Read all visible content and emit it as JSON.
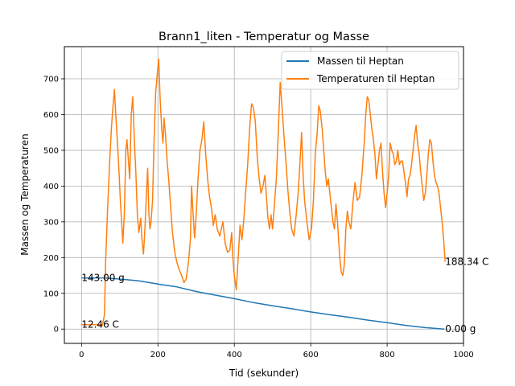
{
  "chart_data": {
    "type": "line",
    "title": "Brann1_liten - Temperatur og Masse",
    "xlabel": "Tid (sekunder)",
    "ylabel": "Massen og Temperaturen",
    "xlim": [
      -45,
      1000
    ],
    "ylim": [
      -40,
      790
    ],
    "xticks": [
      0,
      200,
      400,
      600,
      800,
      1000
    ],
    "yticks": [
      0,
      100,
      200,
      300,
      400,
      500,
      600,
      700
    ],
    "grid": true,
    "legend_position": "top-right",
    "series": [
      {
        "name": "Massen til Heptan",
        "color": "#1f77b4",
        "points": [
          [
            0,
            143
          ],
          [
            60,
            143
          ],
          [
            100,
            140
          ],
          [
            150,
            135
          ],
          [
            200,
            126
          ],
          [
            250,
            118
          ],
          [
            300,
            105
          ],
          [
            350,
            95
          ],
          [
            400,
            85
          ],
          [
            450,
            74
          ],
          [
            500,
            65
          ],
          [
            550,
            57
          ],
          [
            600,
            48
          ],
          [
            650,
            40
          ],
          [
            700,
            33
          ],
          [
            750,
            25
          ],
          [
            800,
            18
          ],
          [
            850,
            10
          ],
          [
            900,
            4
          ],
          [
            950,
            0
          ]
        ]
      },
      {
        "name": "Temperaturen til Heptan",
        "color": "#ff7f0e",
        "points": [
          [
            0,
            12.5
          ],
          [
            55,
            12.5
          ],
          [
            60,
            40
          ],
          [
            63,
            190
          ],
          [
            68,
            330
          ],
          [
            73,
            455
          ],
          [
            78,
            560
          ],
          [
            82,
            620
          ],
          [
            86,
            670
          ],
          [
            90,
            590
          ],
          [
            94,
            520
          ],
          [
            98,
            440
          ],
          [
            102,
            350
          ],
          [
            106,
            280
          ],
          [
            108,
            240
          ],
          [
            112,
            320
          ],
          [
            116,
            500
          ],
          [
            119,
            530
          ],
          [
            122,
            480
          ],
          [
            126,
            420
          ],
          [
            130,
            600
          ],
          [
            134,
            650
          ],
          [
            138,
            530
          ],
          [
            142,
            440
          ],
          [
            146,
            320
          ],
          [
            150,
            270
          ],
          [
            155,
            310
          ],
          [
            158,
            250
          ],
          [
            162,
            210
          ],
          [
            166,
            280
          ],
          [
            170,
            380
          ],
          [
            173,
            450
          ],
          [
            176,
            330
          ],
          [
            179,
            280
          ],
          [
            182,
            300
          ],
          [
            186,
            360
          ],
          [
            190,
            530
          ],
          [
            194,
            660
          ],
          [
            198,
            710
          ],
          [
            202,
            755
          ],
          [
            206,
            640
          ],
          [
            210,
            560
          ],
          [
            213,
            520
          ],
          [
            216,
            590
          ],
          [
            220,
            540
          ],
          [
            224,
            470
          ],
          [
            228,
            420
          ],
          [
            232,
            360
          ],
          [
            238,
            270
          ],
          [
            244,
            215
          ],
          [
            250,
            185
          ],
          [
            256,
            165
          ],
          [
            262,
            150
          ],
          [
            268,
            130
          ],
          [
            274,
            140
          ],
          [
            280,
            190
          ],
          [
            285,
            250
          ],
          [
            288,
            400
          ],
          [
            292,
            320
          ],
          [
            296,
            255
          ],
          [
            300,
            320
          ],
          [
            305,
            420
          ],
          [
            310,
            500
          ],
          [
            315,
            530
          ],
          [
            320,
            580
          ],
          [
            325,
            490
          ],
          [
            330,
            420
          ],
          [
            335,
            370
          ],
          [
            340,
            340
          ],
          [
            345,
            290
          ],
          [
            350,
            320
          ],
          [
            355,
            280
          ],
          [
            362,
            260
          ],
          [
            370,
            300
          ],
          [
            376,
            240
          ],
          [
            382,
            215
          ],
          [
            388,
            220
          ],
          [
            393,
            270
          ],
          [
            396,
            200
          ],
          [
            400,
            150
          ],
          [
            405,
            110
          ],
          [
            410,
            200
          ],
          [
            415,
            290
          ],
          [
            420,
            250
          ],
          [
            425,
            310
          ],
          [
            430,
            390
          ],
          [
            435,
            460
          ],
          [
            440,
            560
          ],
          [
            445,
            630
          ],
          [
            450,
            620
          ],
          [
            455,
            580
          ],
          [
            460,
            480
          ],
          [
            465,
            420
          ],
          [
            470,
            380
          ],
          [
            475,
            400
          ],
          [
            480,
            430
          ],
          [
            484,
            370
          ],
          [
            488,
            310
          ],
          [
            492,
            280
          ],
          [
            496,
            320
          ],
          [
            500,
            280
          ],
          [
            505,
            350
          ],
          [
            510,
            420
          ],
          [
            515,
            550
          ],
          [
            520,
            690
          ],
          [
            525,
            620
          ],
          [
            530,
            540
          ],
          [
            535,
            470
          ],
          [
            540,
            390
          ],
          [
            545,
            330
          ],
          [
            550,
            280
          ],
          [
            556,
            260
          ],
          [
            562,
            320
          ],
          [
            567,
            380
          ],
          [
            572,
            470
          ],
          [
            576,
            550
          ],
          [
            580,
            430
          ],
          [
            584,
            360
          ],
          [
            590,
            300
          ],
          [
            596,
            250
          ],
          [
            602,
            280
          ],
          [
            607,
            360
          ],
          [
            612,
            490
          ],
          [
            617,
            550
          ],
          [
            621,
            625
          ],
          [
            625,
            610
          ],
          [
            630,
            560
          ],
          [
            634,
            500
          ],
          [
            638,
            440
          ],
          [
            642,
            400
          ],
          [
            646,
            420
          ],
          [
            650,
            380
          ],
          [
            654,
            340
          ],
          [
            658,
            300
          ],
          [
            662,
            280
          ],
          [
            666,
            350
          ],
          [
            670,
            300
          ],
          [
            676,
            200
          ],
          [
            680,
            160
          ],
          [
            684,
            150
          ],
          [
            688,
            180
          ],
          [
            692,
            280
          ],
          [
            696,
            330
          ],
          [
            700,
            300
          ],
          [
            705,
            280
          ],
          [
            710,
            350
          ],
          [
            716,
            410
          ],
          [
            722,
            360
          ],
          [
            728,
            370
          ],
          [
            734,
            430
          ],
          [
            740,
            520
          ],
          [
            744,
            600
          ],
          [
            748,
            650
          ],
          [
            752,
            640
          ],
          [
            756,
            600
          ],
          [
            760,
            560
          ],
          [
            764,
            530
          ],
          [
            768,
            490
          ],
          [
            772,
            420
          ],
          [
            776,
            460
          ],
          [
            780,
            500
          ],
          [
            784,
            520
          ],
          [
            788,
            440
          ],
          [
            792,
            380
          ],
          [
            796,
            340
          ],
          [
            800,
            380
          ],
          [
            804,
            430
          ],
          [
            808,
            520
          ],
          [
            812,
            500
          ],
          [
            816,
            490
          ],
          [
            820,
            460
          ],
          [
            824,
            470
          ],
          [
            828,
            500
          ],
          [
            832,
            460
          ],
          [
            836,
            470
          ],
          [
            840,
            470
          ],
          [
            844,
            440
          ],
          [
            848,
            410
          ],
          [
            852,
            370
          ],
          [
            856,
            420
          ],
          [
            860,
            430
          ],
          [
            864,
            460
          ],
          [
            868,
            500
          ],
          [
            872,
            540
          ],
          [
            876,
            570
          ],
          [
            880,
            520
          ],
          [
            884,
            490
          ],
          [
            888,
            440
          ],
          [
            892,
            400
          ],
          [
            896,
            360
          ],
          [
            900,
            380
          ],
          [
            904,
            430
          ],
          [
            908,
            490
          ],
          [
            912,
            530
          ],
          [
            916,
            520
          ],
          [
            920,
            470
          ],
          [
            924,
            430
          ],
          [
            928,
            410
          ],
          [
            932,
            400
          ],
          [
            936,
            380
          ],
          [
            940,
            340
          ],
          [
            944,
            300
          ],
          [
            948,
            250
          ],
          [
            952,
            188.34
          ]
        ]
      }
    ],
    "annotations": [
      {
        "text": "143.00 g",
        "x": 0,
        "y": 143
      },
      {
        "text": "12.46 C",
        "x": 0,
        "y": 12.46
      },
      {
        "text": "188.34 C",
        "x": 952,
        "y": 188.34
      },
      {
        "text": "0.00 g",
        "x": 952,
        "y": 0
      }
    ]
  }
}
